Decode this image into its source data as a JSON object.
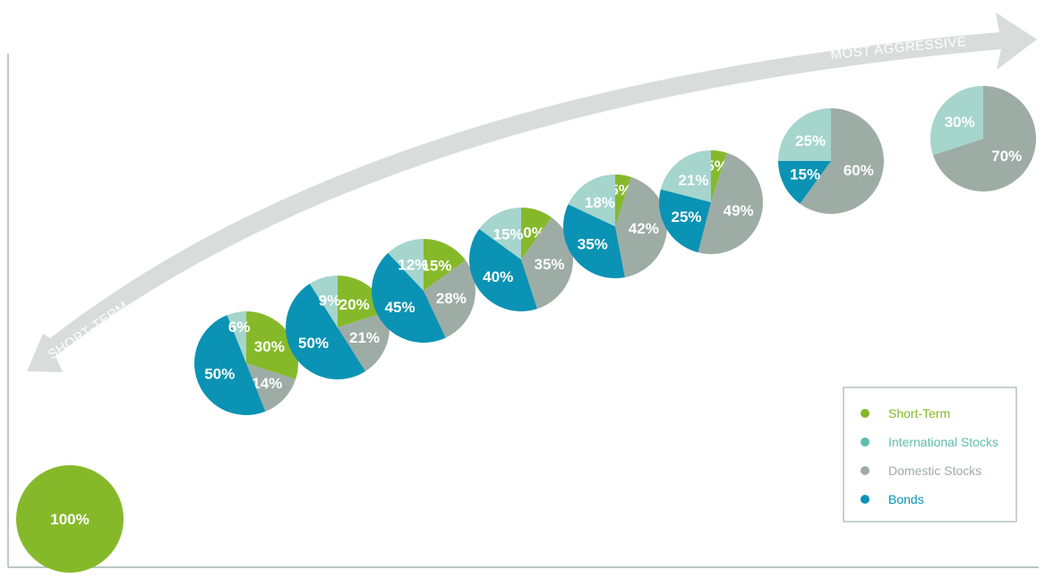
{
  "colors": {
    "short_term": "#86b92a",
    "international": "#a5d5cd",
    "domestic": "#9eaca6",
    "bonds": "#0a93b4",
    "arrow": "#d9dcdb",
    "axis": "#8fa7a5"
  },
  "arrow": {
    "start_label": "SHORT-TERM",
    "end_label": "MOST AGGRESSIVE"
  },
  "legend": [
    {
      "key": "short_term",
      "label": "Short-Term",
      "color": "#86b92a"
    },
    {
      "key": "international",
      "label": "International Stocks",
      "color": "#61bcb0"
    },
    {
      "key": "domestic",
      "label": "Domestic Stocks",
      "color": "#9eaca6"
    },
    {
      "key": "bonds",
      "label": "Bonds",
      "color": "#0a93b4"
    }
  ],
  "chart_data": {
    "type": "pie",
    "title": "",
    "series_keys": [
      "short_term",
      "international",
      "domestic",
      "bonds"
    ],
    "portfolios": [
      {
        "short_term": 100,
        "international": 0,
        "domestic": 0,
        "bonds": 0,
        "labels": {
          "short_term": "100%"
        }
      },
      {
        "short_term": 30,
        "international": 6,
        "domestic": 14,
        "bonds": 50,
        "labels": {
          "short_term": "30%",
          "international": "6%",
          "domestic": "14%",
          "bonds": "50%"
        }
      },
      {
        "short_term": 20,
        "international": 9,
        "domestic": 21,
        "bonds": 50,
        "labels": {
          "short_term": "20%",
          "international": "9%",
          "domestic": "21%",
          "bonds": "50%"
        }
      },
      {
        "short_term": 15,
        "international": 12,
        "domestic": 28,
        "bonds": 45,
        "labels": {
          "short_term": "15%",
          "international": "12%",
          "domestic": "28%",
          "bonds": "45%"
        }
      },
      {
        "short_term": 10,
        "international": 15,
        "domestic": 35,
        "bonds": 40,
        "labels": {
          "short_term": "10%",
          "international": "15%",
          "domestic": "35%",
          "bonds": "40%"
        }
      },
      {
        "short_term": 5,
        "international": 18,
        "domestic": 42,
        "bonds": 35,
        "labels": {
          "short_term": "5%",
          "international": "18%",
          "domestic": "42%",
          "bonds": "35%"
        }
      },
      {
        "short_term": 5,
        "international": 21,
        "domestic": 49,
        "bonds": 25,
        "labels": {
          "short_term": "5%",
          "international": "21%",
          "domestic": "49%",
          "bonds": "25%"
        }
      },
      {
        "short_term": 0,
        "international": 25,
        "domestic": 60,
        "bonds": 15,
        "labels": {
          "international": "25%",
          "domestic": "60%",
          "bonds": "15%"
        }
      },
      {
        "short_term": 0,
        "international": 30,
        "domestic": 70,
        "bonds": 0,
        "labels": {
          "international": "30%",
          "domestic": "70%"
        }
      }
    ]
  }
}
